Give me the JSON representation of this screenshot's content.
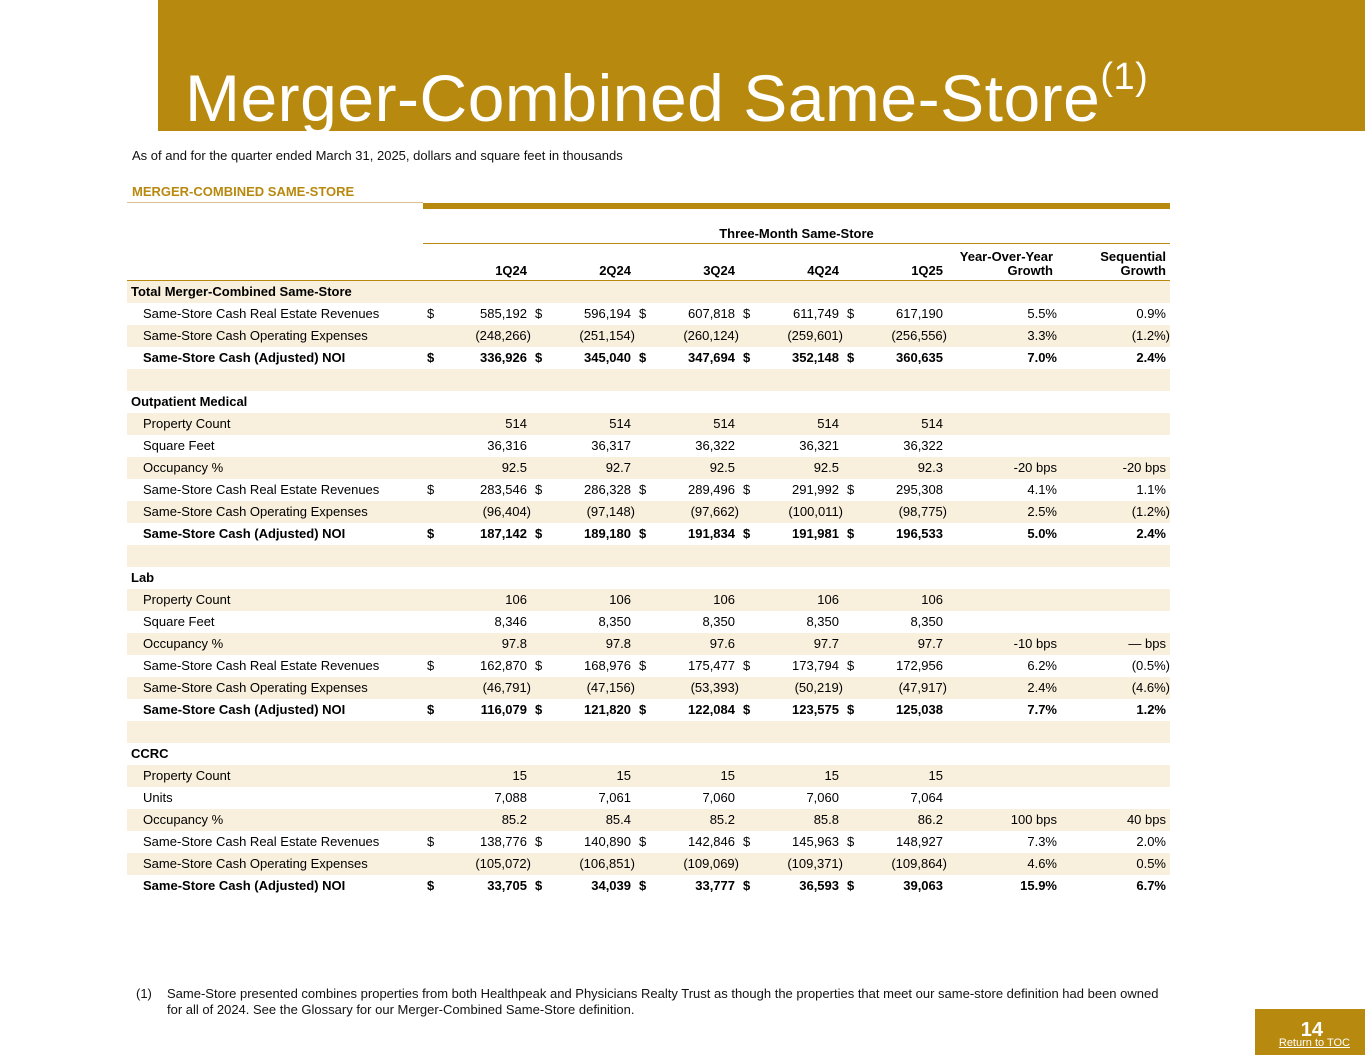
{
  "page": {
    "title": "Merger-Combined Same-Store",
    "title_sup": "(1)",
    "subtitle": "As of and for the quarter ended March 31, 2025, dollars and square feet in thousands",
    "section_label": "MERGER-COMBINED SAME-STORE",
    "group_header": "Three-Month Same-Store",
    "page_number": "14",
    "toc_link": "Return to TOC",
    "accent_color": "#b8890f"
  },
  "columns": [
    "1Q24",
    "2Q24",
    "3Q24",
    "4Q24",
    "1Q25",
    "Year-Over-Year Growth",
    "Sequential Growth"
  ],
  "rows": [
    {
      "type": "section",
      "label": "Total Merger-Combined Same-Store"
    },
    {
      "type": "data",
      "label": "Same-Store Cash Real Estate Revenues",
      "dollar": true,
      "values": [
        "585,192",
        "596,194",
        "607,818",
        "611,749",
        "617,190"
      ],
      "yoy": "5.5%",
      "seq": "0.9%"
    },
    {
      "type": "data",
      "label": "Same-Store Cash Operating Expenses",
      "dollar": false,
      "values": [
        "(248,266)",
        "(251,154)",
        "(260,124)",
        "(259,601)",
        "(256,556)"
      ],
      "yoy": "3.3%",
      "seq": "(1.2%)"
    },
    {
      "type": "data",
      "bold": true,
      "label": "Same-Store Cash (Adjusted) NOI",
      "dollar": true,
      "values": [
        "336,926",
        "345,040",
        "347,694",
        "352,148",
        "360,635"
      ],
      "yoy": "7.0%",
      "seq": "2.4%"
    },
    {
      "type": "blank"
    },
    {
      "type": "section",
      "label": "Outpatient Medical"
    },
    {
      "type": "data",
      "label": "Property Count",
      "dollar": false,
      "values": [
        "514",
        "514",
        "514",
        "514",
        "514"
      ],
      "yoy": "",
      "seq": ""
    },
    {
      "type": "data",
      "label": "Square Feet",
      "dollar": false,
      "values": [
        "36,316",
        "36,317",
        "36,322",
        "36,321",
        "36,322"
      ],
      "yoy": "",
      "seq": ""
    },
    {
      "type": "data",
      "label": "Occupancy %",
      "dollar": false,
      "values": [
        "92.5",
        "92.7",
        "92.5",
        "92.5",
        "92.3"
      ],
      "yoy": "-20 bps",
      "seq": "-20 bps"
    },
    {
      "type": "data",
      "label": "Same-Store Cash Real Estate Revenues",
      "dollar": true,
      "values": [
        "283,546",
        "286,328",
        "289,496",
        "291,992",
        "295,308"
      ],
      "yoy": "4.1%",
      "seq": "1.1%"
    },
    {
      "type": "data",
      "label": "Same-Store Cash Operating Expenses",
      "dollar": false,
      "values": [
        "(96,404)",
        "(97,148)",
        "(97,662)",
        "(100,011)",
        "(98,775)"
      ],
      "yoy": "2.5%",
      "seq": "(1.2%)"
    },
    {
      "type": "data",
      "bold": true,
      "label": "Same-Store Cash (Adjusted) NOI",
      "dollar": true,
      "values": [
        "187,142",
        "189,180",
        "191,834",
        "191,981",
        "196,533"
      ],
      "yoy": "5.0%",
      "seq": "2.4%"
    },
    {
      "type": "blank"
    },
    {
      "type": "section",
      "label": "Lab"
    },
    {
      "type": "data",
      "label": "Property Count",
      "dollar": false,
      "values": [
        "106",
        "106",
        "106",
        "106",
        "106"
      ],
      "yoy": "",
      "seq": ""
    },
    {
      "type": "data",
      "label": "Square Feet",
      "dollar": false,
      "values": [
        "8,346",
        "8,350",
        "8,350",
        "8,350",
        "8,350"
      ],
      "yoy": "",
      "seq": ""
    },
    {
      "type": "data",
      "label": "Occupancy %",
      "dollar": false,
      "values": [
        "97.8",
        "97.8",
        "97.6",
        "97.7",
        "97.7"
      ],
      "yoy": "-10 bps",
      "seq": "— bps"
    },
    {
      "type": "data",
      "label": "Same-Store Cash Real Estate Revenues",
      "dollar": true,
      "values": [
        "162,870",
        "168,976",
        "175,477",
        "173,794",
        "172,956"
      ],
      "yoy": "6.2%",
      "seq": "(0.5%)"
    },
    {
      "type": "data",
      "label": "Same-Store Cash Operating Expenses",
      "dollar": false,
      "values": [
        "(46,791)",
        "(47,156)",
        "(53,393)",
        "(50,219)",
        "(47,917)"
      ],
      "yoy": "2.4%",
      "seq": "(4.6%)"
    },
    {
      "type": "data",
      "bold": true,
      "label": "Same-Store Cash (Adjusted) NOI",
      "dollar": true,
      "values": [
        "116,079",
        "121,820",
        "122,084",
        "123,575",
        "125,038"
      ],
      "yoy": "7.7%",
      "seq": "1.2%"
    },
    {
      "type": "blank"
    },
    {
      "type": "section",
      "label": "CCRC"
    },
    {
      "type": "data",
      "label": "Property Count",
      "dollar": false,
      "values": [
        "15",
        "15",
        "15",
        "15",
        "15"
      ],
      "yoy": "",
      "seq": ""
    },
    {
      "type": "data",
      "label": "Units",
      "dollar": false,
      "values": [
        "7,088",
        "7,061",
        "7,060",
        "7,060",
        "7,064"
      ],
      "yoy": "",
      "seq": ""
    },
    {
      "type": "data",
      "label": "Occupancy %",
      "dollar": false,
      "values": [
        "85.2",
        "85.4",
        "85.2",
        "85.8",
        "86.2"
      ],
      "yoy": "100 bps",
      "seq": "40 bps"
    },
    {
      "type": "data",
      "label": "Same-Store Cash Real Estate Revenues",
      "dollar": true,
      "values": [
        "138,776",
        "140,890",
        "142,846",
        "145,963",
        "148,927"
      ],
      "yoy": "7.3%",
      "seq": "2.0%"
    },
    {
      "type": "data",
      "label": "Same-Store Cash Operating Expenses",
      "dollar": false,
      "values": [
        "(105,072)",
        "(106,851)",
        "(109,069)",
        "(109,371)",
        "(109,864)"
      ],
      "yoy": "4.6%",
      "seq": "0.5%"
    },
    {
      "type": "data",
      "bold": true,
      "label": "Same-Store Cash (Adjusted) NOI",
      "dollar": true,
      "values": [
        "33,705",
        "34,039",
        "33,777",
        "36,593",
        "39,063"
      ],
      "yoy": "15.9%",
      "seq": "6.7%"
    }
  ],
  "footnote": {
    "number": "(1)",
    "text": "Same-Store presented combines properties from both Healthpeak and Physicians Realty Trust as though the properties that meet our same-store definition had been owned for all of 2024. See the Glossary for our Merger-Combined Same-Store definition."
  }
}
